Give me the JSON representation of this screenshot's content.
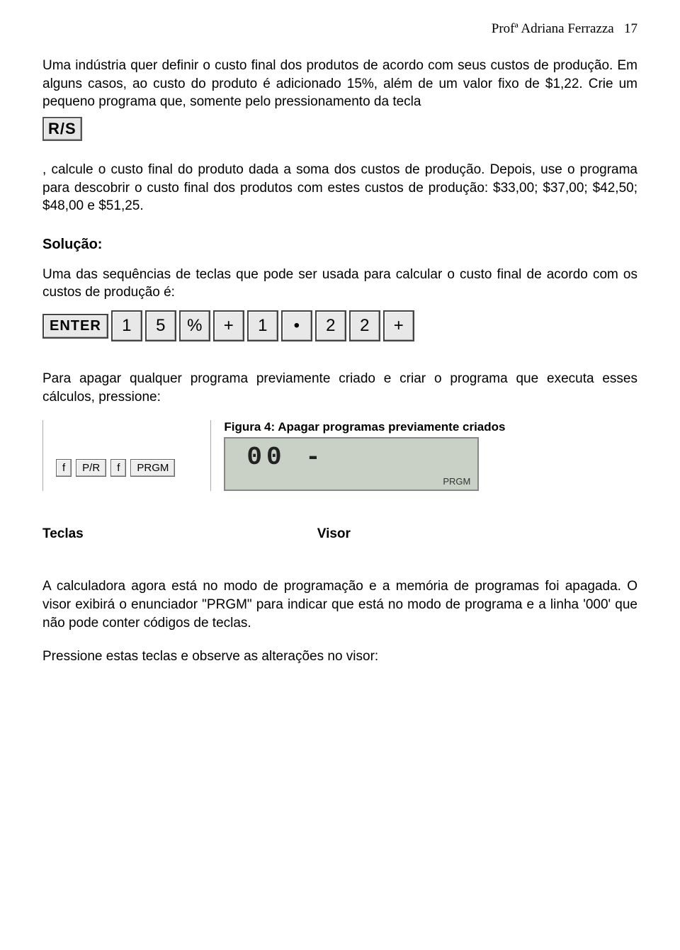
{
  "header": {
    "author": "Profª Adriana Ferrazza",
    "page_num": "17"
  },
  "p1": "Uma indústria quer definir o custo final dos produtos de acordo com seus custos de produção. Em alguns casos, ao custo do produto é adicionado 15%, além de um valor fixo de $1,22. Crie um pequeno programa que, somente pelo pressionamento da tecla",
  "key_rs": "R/S",
  "p2": ", calcule o custo final do produto dada a soma dos custos de produção. Depois, use o programa para descobrir o custo final dos produtos com estes custos de produção: $33,00; $37,00; $42,50; $48,00 e $51,25.",
  "solution_label": "Solução:",
  "p3": "Uma das sequências de teclas que pode ser usada para calcular o custo final de acordo com os custos de produção é:",
  "keyrow": {
    "enter": "ENTER",
    "k1": "1",
    "k5": "5",
    "pct": "%",
    "plus1": "+",
    "k1b": "1",
    "dot": "•",
    "k2a": "2",
    "k2b": "2",
    "plus2": "+"
  },
  "p4": "Para apagar qualquer programa previamente criado e criar o programa que executa esses  cálculos, pressione:",
  "fig_keys": {
    "f1": "f",
    "pr": "P/R",
    "f2": "f",
    "prgm": "PRGM"
  },
  "figure": {
    "caption": "Figura 4: Apagar programas previamente criados",
    "digits": "00 -",
    "indicator": "PRGM"
  },
  "tv": {
    "teclas": "Teclas",
    "visor": "Visor"
  },
  "p5": "A calculadora agora está no modo de programação e a memória de programas foi apagada. O visor exibirá o enunciador \"PRGM\" para indicar que está no modo de programa e a linha '000' que não pode conter códigos de teclas.",
  "p6": "Pressione estas teclas e observe as alterações no visor:"
}
